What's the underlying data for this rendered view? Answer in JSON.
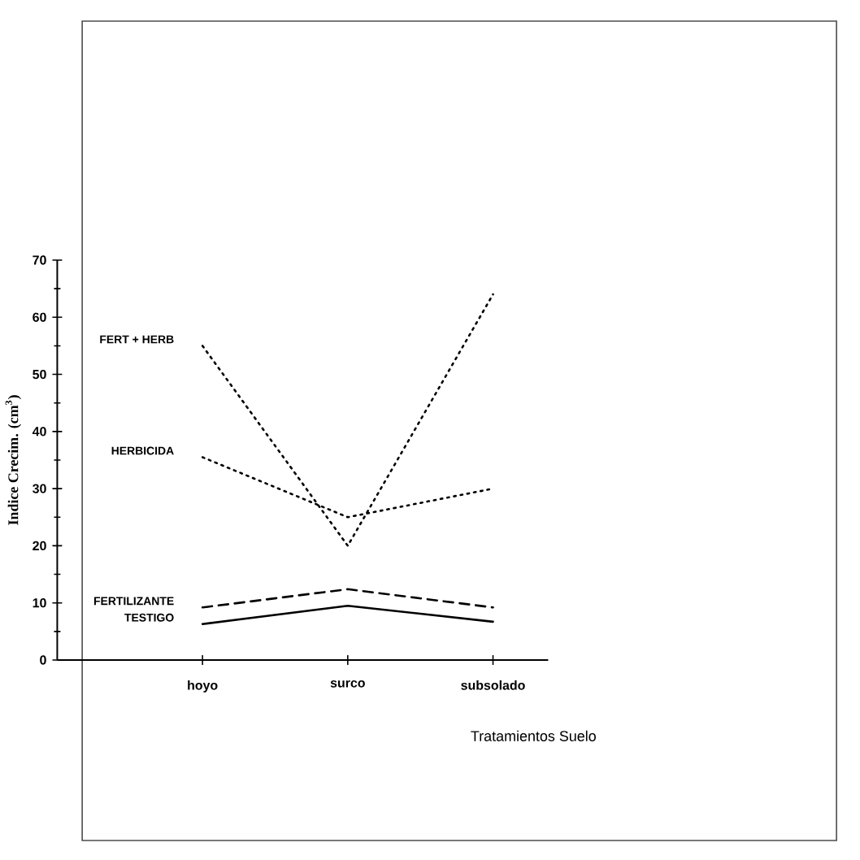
{
  "chart_data": {
    "type": "line",
    "xlabel": "Tratamientos Suelo",
    "ylabel": "Indice Crecim. (cm$^{3}$)",
    "categories": [
      "hoyo",
      "surco",
      "subsolado"
    ],
    "series": [
      {
        "name": "FERT + HERB",
        "color": "#000000",
        "line_style": "dotted",
        "values": [
          55,
          20,
          64
        ]
      },
      {
        "name": "HERBICIDA",
        "color": "#000000",
        "line_style": "dotted",
        "values": [
          35.5,
          25,
          30
        ]
      },
      {
        "name": "FERTILIZANTE",
        "color": "#000000",
        "line_style": "dashed",
        "values": [
          9.2,
          12.4,
          9.2
        ]
      },
      {
        "name": "TESTIGO",
        "color": "#000000",
        "line_style": "solid",
        "values": [
          6.3,
          9.5,
          6.7
        ]
      }
    ],
    "ylim": [
      0,
      70
    ],
    "yticks": [
      0,
      10,
      20,
      30,
      40,
      50,
      60,
      70
    ]
  }
}
